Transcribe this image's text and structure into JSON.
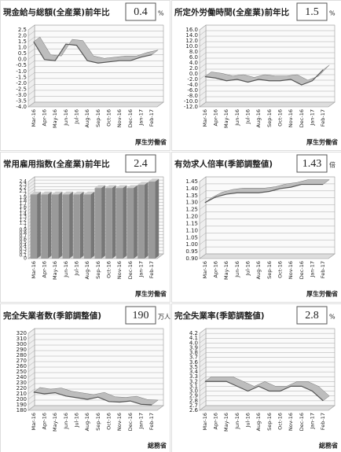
{
  "chart_data": [
    {
      "type": "line",
      "title": "現金給与総額(全産業)前年比",
      "headline": 0.4,
      "unit": "%",
      "source": "厚生労働省",
      "categories": [
        "Mar-16",
        "Apr-16",
        "May-16",
        "Jun-16",
        "Jul-16",
        "Aug-16",
        "Sep-16",
        "Oct-16",
        "Nov-16",
        "Dec-16",
        "Jan-17",
        "Feb-17"
      ],
      "values": [
        1.5,
        0.0,
        -0.1,
        1.3,
        1.2,
        -0.1,
        -0.3,
        -0.2,
        -0.1,
        -0.1,
        0.2,
        0.4
      ],
      "ylim": [
        -4.0,
        2.5
      ],
      "yticks": [
        {
          "value": -4,
          "label": "-4.0"
        },
        -3.5,
        {
          "value": -3,
          "label": "-3.0"
        },
        -2.5,
        {
          "value": -2,
          "label": "-2.0"
        },
        -1.5,
        {
          "value": -1,
          "label": "-1.0"
        },
        -0.5,
        {
          "value": 0,
          "label": "0.0"
        },
        0.5,
        {
          "value": 1,
          "label": "1.0"
        },
        1.5,
        {
          "value": 2,
          "label": "2.0"
        },
        2.5
      ],
      "color": "#555555"
    },
    {
      "type": "line",
      "title": "所定外労働時間(全産業)前年比",
      "headline": 1.5,
      "unit": "%",
      "source": "厚生労働省",
      "categories": [
        "Mar-16",
        "Apr-16",
        "May-16",
        "Jun-16",
        "Jul-16",
        "Aug-16",
        "Sep-16",
        "Oct-16",
        "Nov-16",
        "Dec-16",
        "Jan-17",
        "Feb-17"
      ],
      "values": [
        -1.0,
        -1.5,
        -2.5,
        -2.0,
        -3.0,
        -2.0,
        -2.5,
        -2.5,
        -2.0,
        -4.0,
        -2.5,
        1.5
      ],
      "ylim": [
        -12.0,
        16.0
      ],
      "yticks": [
        {
          "value": -12,
          "label": "-12.0"
        },
        {
          "value": -10,
          "label": "-10.0"
        },
        {
          "value": -8,
          "label": "-8.0"
        },
        {
          "value": -6,
          "label": "-6.0"
        },
        {
          "value": -4,
          "label": "-4.0"
        },
        {
          "value": -2,
          "label": "-2.0"
        },
        {
          "value": 0,
          "label": "0.0"
        },
        {
          "value": 2,
          "label": "2.0"
        },
        {
          "value": 4,
          "label": "4.0"
        },
        {
          "value": 6,
          "label": "6.0"
        },
        {
          "value": 8,
          "label": "8.0"
        },
        {
          "value": 10,
          "label": "10.0"
        },
        {
          "value": 12,
          "label": "12.0"
        },
        {
          "value": 14,
          "label": "14.0"
        },
        {
          "value": 16,
          "label": "16.0"
        }
      ],
      "color": "#555555"
    },
    {
      "type": "bar",
      "title": "常用雇用指数(全産業)前年比",
      "headline": 2.4,
      "source": "厚生労働省",
      "categories": [
        "Mar-16",
        "Apr-16",
        "May-16",
        "Jun-16",
        "Jul-16",
        "Aug-16",
        "Sep-16",
        "Oct-16",
        "Nov-16",
        "Dec-16",
        "Jan-17",
        "Feb-17"
      ],
      "values": [
        2.0,
        2.0,
        2.0,
        2.0,
        2.0,
        2.0,
        2.2,
        2.2,
        2.2,
        2.2,
        2.3,
        2.4
      ],
      "ylim": [
        0,
        2.4
      ],
      "yticks": [
        0,
        0.1,
        0.2,
        0.3,
        0.4,
        0.5,
        0.6,
        0.7,
        0.8,
        0.9,
        1,
        1.1,
        1.2,
        1.3,
        1.4,
        1.5,
        1.6,
        1.7,
        1.8,
        1.9,
        2,
        2.1,
        2.2,
        2.3,
        2.4
      ],
      "color": "#9a9a9a"
    },
    {
      "type": "line",
      "title": "有効求人倍率(季節調整値)",
      "headline": 1.43,
      "unit": "倍",
      "source": "厚生労働省",
      "categories": [
        "Mar-16",
        "Apr-16",
        "May-16",
        "Jun-16",
        "Jul-16",
        "Aug-16",
        "Sep-16",
        "Oct-16",
        "Nov-16",
        "Dec-16",
        "Jan-17",
        "Feb-17"
      ],
      "values": [
        1.3,
        1.34,
        1.36,
        1.37,
        1.37,
        1.37,
        1.38,
        1.4,
        1.41,
        1.43,
        1.43,
        1.43
      ],
      "ylim": [
        0.9,
        1.45
      ],
      "yticks": [
        {
          "value": 0.9,
          "label": "0.90"
        },
        0.95,
        {
          "value": 1,
          "label": "1.00"
        },
        1.05,
        {
          "value": 1.1,
          "label": "1.10"
        },
        1.15,
        {
          "value": 1.2,
          "label": "1.20"
        },
        1.25,
        {
          "value": 1.3,
          "label": "1.30"
        },
        1.35,
        {
          "value": 1.4,
          "label": "1.40"
        },
        1.45
      ],
      "color": "#555555"
    },
    {
      "type": "line",
      "title": "完全失業者数(季節調整値)",
      "headline": 190,
      "unit": "万人",
      "source": "総務省",
      "categories": [
        "Mar-16",
        "Apr-16",
        "May-16",
        "Jun-16",
        "Jul-16",
        "Aug-16",
        "Sep-16",
        "Oct-16",
        "Nov-16",
        "Dec-16",
        "Jan-17",
        "Feb-17"
      ],
      "values": [
        213,
        210,
        212,
        206,
        203,
        200,
        204,
        196,
        195,
        197,
        191,
        190
      ],
      "ylim": [
        180,
        320
      ],
      "yticks": [
        180,
        190,
        200,
        210,
        220,
        230,
        240,
        250,
        260,
        270,
        280,
        290,
        300,
        310,
        320
      ],
      "color": "#555555"
    },
    {
      "type": "line",
      "title": "完全失業率(季節調整値)",
      "headline": 2.8,
      "unit": "%",
      "source": "総務省",
      "categories": [
        "Mar-16",
        "Apr-16",
        "May-16",
        "Jun-16",
        "Jul-16",
        "Aug-16",
        "Sep-16",
        "Oct-16",
        "Nov-16",
        "Dec-16",
        "Jan-17",
        "Feb-17"
      ],
      "values": [
        3.2,
        3.2,
        3.2,
        3.1,
        3.0,
        3.1,
        3.0,
        3.0,
        3.1,
        3.1,
        3.0,
        2.8
      ],
      "ylim": [
        2.6,
        4.2
      ],
      "yticks": [
        2.6,
        2.7,
        2.8,
        2.9,
        {
          "value": 3,
          "label": "3.0"
        },
        3.1,
        3.2,
        3.3,
        3.4,
        3.5,
        3.6,
        3.7,
        3.8,
        3.9,
        {
          "value": 4,
          "label": "4.0"
        },
        4.1,
        4.2
      ],
      "color": "#555555"
    }
  ]
}
